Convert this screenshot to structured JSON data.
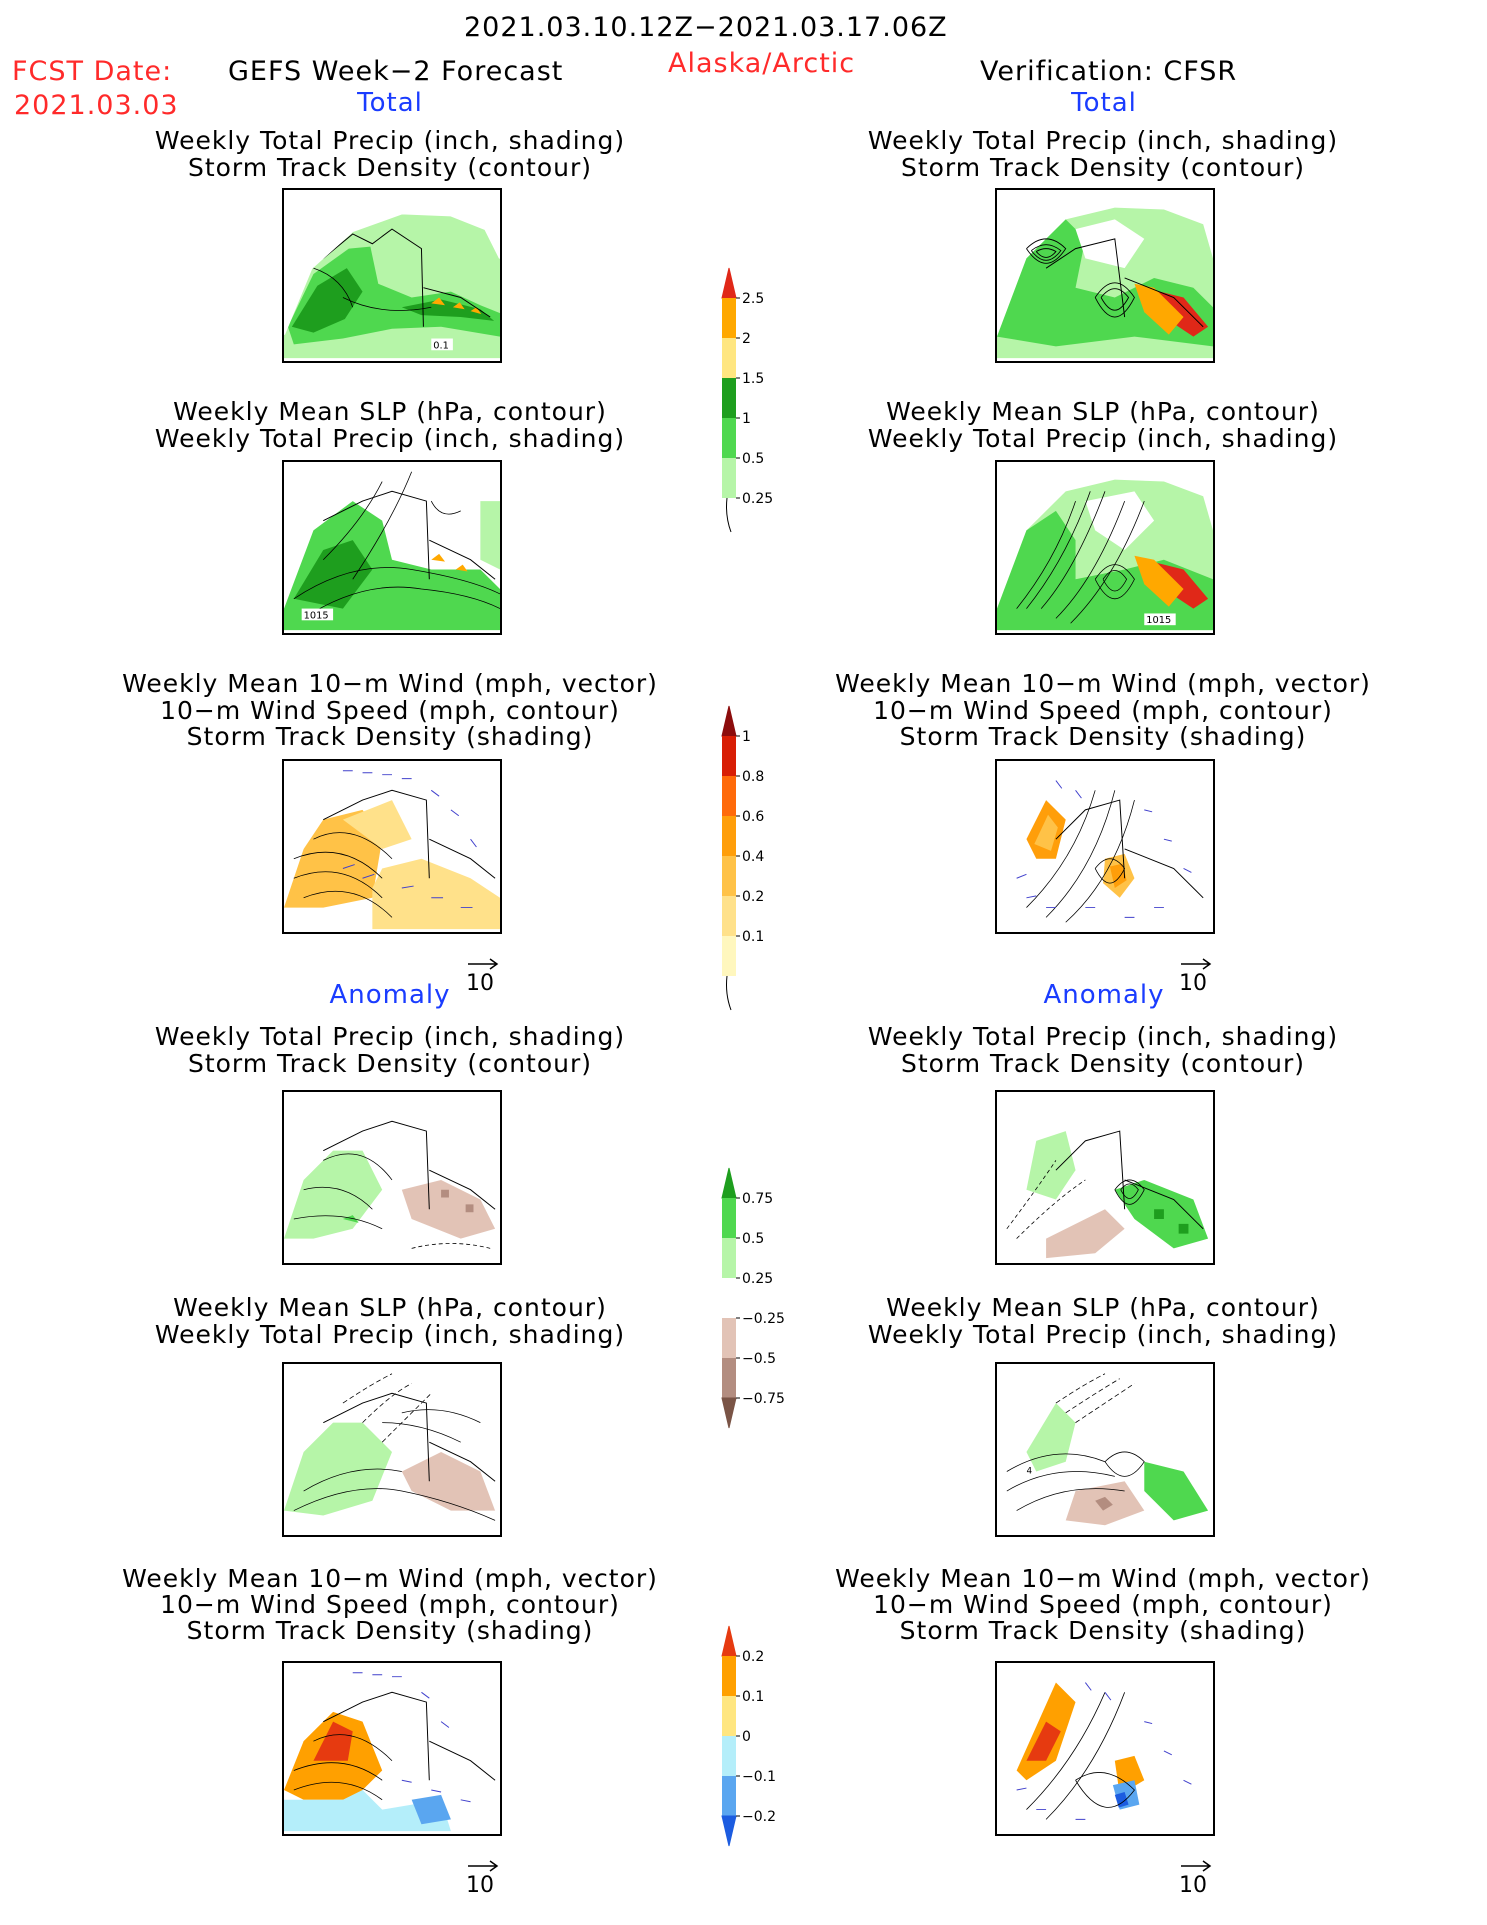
{
  "header": {
    "period": "2021.03.10.12Z−2021.03.17.06Z",
    "fcst_label": "FCST Date:",
    "fcst_date": "2021.03.03",
    "model": "GEFS Week−2 Forecast",
    "region": "Alaska/Arctic",
    "verification": "Verification: CFSR"
  },
  "sections": {
    "total": "Total",
    "anomaly": "Anomaly"
  },
  "titles": {
    "precip_track": [
      "Weekly Total Precip (inch, shading)",
      "Storm Track Density (contour)"
    ],
    "slp_precip": [
      "Weekly Mean SLP (hPa, contour)",
      "Weekly Total Precip (inch, shading)"
    ],
    "wind_track": [
      "Weekly Mean 10−m Wind (mph, vector)",
      "10−m Wind Speed (mph, contour)",
      "Storm Track Density (shading)"
    ]
  },
  "panel_labels": {
    "fcst_precip_label": "0.1",
    "fcst_slp_label": "1015",
    "cfsr_slp_label": "1015",
    "cfsr_slp_anom_label": "4"
  },
  "vector_reference": "10",
  "colorbars": {
    "precip_total": {
      "labels": [
        "2.5",
        "2",
        "1.5",
        "1",
        "0.5",
        "0.25"
      ],
      "colors": [
        "#e02818",
        "#ffa800",
        "#ffe680",
        "#1e9e1e",
        "#4fd84f",
        "#b6f5a8"
      ]
    },
    "density_total": {
      "labels": [
        "1",
        "0.8",
        "0.6",
        "0.4",
        "0.2",
        "0.1"
      ],
      "colors": [
        "#8c0c0c",
        "#d81e05",
        "#ff6a0a",
        "#ff9e0a",
        "#ffc247",
        "#ffe18a",
        "#fff7be"
      ]
    },
    "precip_anom": {
      "labels": [
        "0.75",
        "0.5",
        "0.25",
        "−0.25",
        "−0.5",
        "−0.75"
      ],
      "colors": [
        "#1e9e1e",
        "#4fd84f",
        "#b6f5a8",
        "#ffffff",
        "#e2c3b6",
        "#b38d80",
        "#7a5446"
      ]
    },
    "density_anom": {
      "labels": [
        "0.2",
        "0.1",
        "0",
        "−0.1",
        "−0.2"
      ],
      "colors": [
        "#e63a10",
        "#ffa000",
        "#ffe680",
        "#b4eefa",
        "#5aa6f0",
        "#1c5ce0"
      ]
    }
  }
}
